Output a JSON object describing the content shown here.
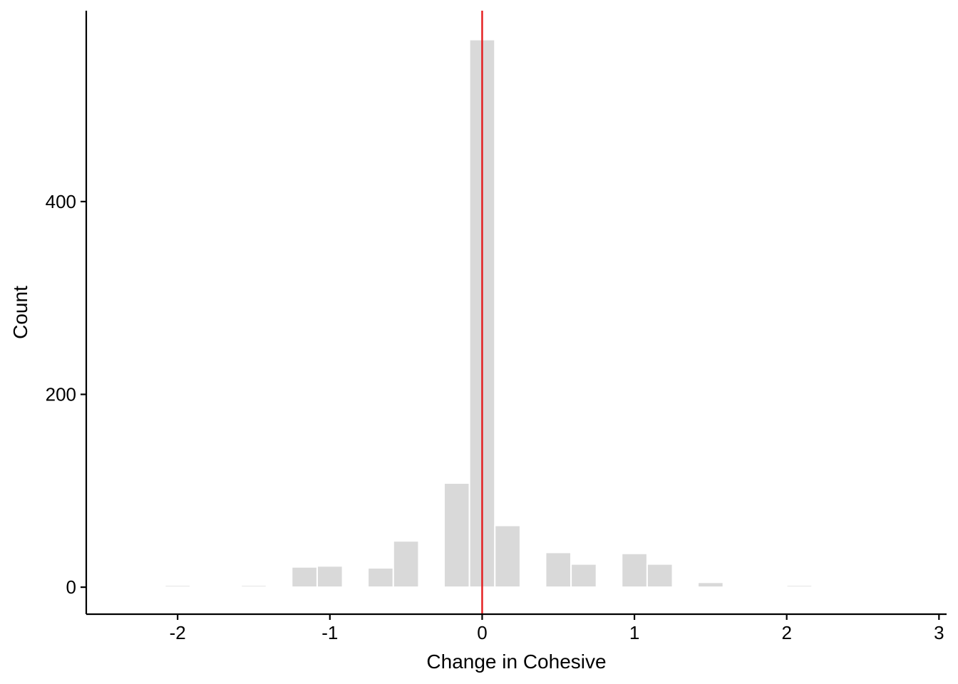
{
  "chart_data": {
    "type": "bar",
    "subtype": "histogram",
    "title": "",
    "xlabel": "Change in Cohesive",
    "ylabel": "Count",
    "xlim": [
      -2.6,
      3.05
    ],
    "ylim": [
      -28,
      598
    ],
    "xticks": [
      -2,
      -1,
      0,
      1,
      2,
      3
    ],
    "xtick_labels": [
      "-2",
      "-1",
      "0",
      "1",
      "2",
      "3"
    ],
    "yticks": [
      0,
      200,
      400
    ],
    "ytick_labels": [
      "0",
      "200",
      "400"
    ],
    "bin_width": 0.1667,
    "bins": [
      {
        "x": -2.167,
        "count": 1
      },
      {
        "x": -2.0,
        "count": 2
      },
      {
        "x": -1.5,
        "count": 2
      },
      {
        "x": -1.167,
        "count": 21
      },
      {
        "x": -1.0,
        "count": 22
      },
      {
        "x": -0.667,
        "count": 20
      },
      {
        "x": -0.5,
        "count": 48
      },
      {
        "x": -0.167,
        "count": 108
      },
      {
        "x": 0.0,
        "count": 568
      },
      {
        "x": 0.167,
        "count": 64
      },
      {
        "x": 0.5,
        "count": 36
      },
      {
        "x": 0.667,
        "count": 24
      },
      {
        "x": 1.0,
        "count": 35
      },
      {
        "x": 1.167,
        "count": 24
      },
      {
        "x": 1.5,
        "count": 5
      },
      {
        "x": 2.083,
        "count": 2
      }
    ],
    "reference_line": {
      "x": 0,
      "color": "#e41a1c"
    },
    "bar_color": "#d9d9d9",
    "bar_outline": "#ffffff",
    "grid": false,
    "legend": "none"
  }
}
